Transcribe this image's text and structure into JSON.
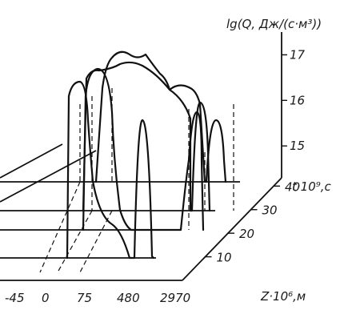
{
  "chart_data": {
    "type": "line",
    "subtype": "3d-waterfall",
    "title": "",
    "zlabel": "lg(Q, Дж/(с·м³))",
    "xlabel": "Z·10⁶,м",
    "ylabel": "t·10⁹,с",
    "x_tick_labels": [
      "-45",
      "0",
      "75",
      "480",
      "2970"
    ],
    "t_tick_labels": [
      "10",
      "20",
      "30",
      "40"
    ],
    "z_tick_labels": [
      "15",
      "16",
      "17"
    ],
    "z_ticks": [
      15,
      16,
      17
    ],
    "zlim": [
      14.3,
      17.5
    ],
    "t_values": [
      10,
      20,
      30,
      40
    ],
    "series": [
      {
        "t": 10,
        "peaks": [
          {
            "x": "0",
            "height": 16.9
          },
          {
            "x": "480",
            "height": 16.2
          }
        ]
      },
      {
        "t": 20,
        "peaks": [
          {
            "x": "0",
            "height": 17.1
          },
          {
            "x": "2970",
            "height": 15.8
          }
        ]
      },
      {
        "t": 30,
        "peaks": [
          {
            "x": "75",
            "height": 17.3
          },
          {
            "x": "2970",
            "height": 16.2
          }
        ]
      },
      {
        "t": 40,
        "peaks": [
          {
            "x": "75",
            "height": 17.6
          },
          {
            "x": "2970",
            "height": 16.3
          }
        ]
      }
    ],
    "grid": false,
    "legend": "none"
  }
}
